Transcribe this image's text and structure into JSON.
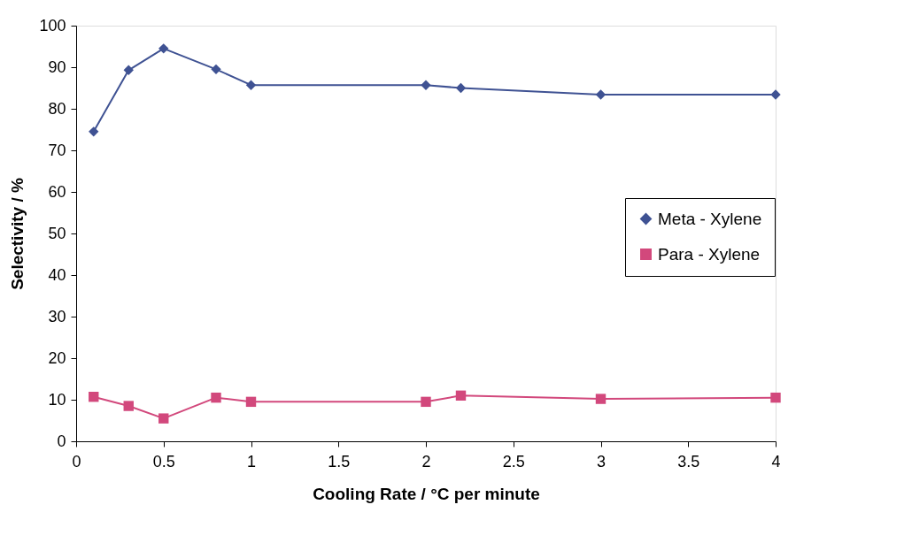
{
  "chart_data": {
    "type": "line",
    "xlabel": "Cooling Rate / °C per minute",
    "ylabel": "Selectivity / %",
    "x": [
      0.1,
      0.3,
      0.5,
      0.8,
      1,
      2,
      2.2,
      3,
      4
    ],
    "series": [
      {
        "name": "Meta - Xylene",
        "color": "#3f5293",
        "marker": "diamond",
        "values": [
          74.5,
          89.3,
          94.5,
          89.5,
          85.7,
          85.7,
          85.0,
          83.4,
          83.4
        ]
      },
      {
        "name": "Para - Xylene",
        "color": "#d2487c",
        "marker": "square",
        "values": [
          10.7,
          8.5,
          5.5,
          10.5,
          9.5,
          9.5,
          11.0,
          10.2,
          10.5
        ]
      }
    ],
    "xlim": [
      0,
      4
    ],
    "xticks": [
      0,
      0.5,
      1,
      1.5,
      2,
      2.5,
      3,
      3.5,
      4
    ],
    "ylim": [
      0,
      100
    ],
    "yticks": [
      0,
      10,
      20,
      30,
      40,
      50,
      60,
      70,
      80,
      90,
      100
    ],
    "grid": false,
    "legend": "right",
    "line_style": "solid"
  }
}
